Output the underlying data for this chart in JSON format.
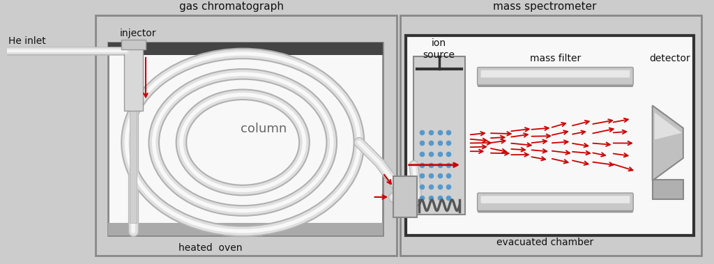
{
  "bg_color": "#cccccc",
  "title_gc": "gas chromatograph",
  "title_ms": "mass spectrometer",
  "label_oven": "heated  oven",
  "label_evacuated": "evacuated chamber",
  "label_column": "column",
  "label_injector": "injector",
  "label_he": "He inlet",
  "label_ion": "ion\nsource",
  "label_mass_filter": "mass filter",
  "label_detector": "detector",
  "arrow_color": "#cc0000",
  "tube_color": "#e8e8e8",
  "tube_shadow": "#b0b0b0",
  "box_fill": "#c8c8c8",
  "white_fill": "#ffffff",
  "rod_fill": "#c0c0c0",
  "ion_box_fill": "#d0d0d0"
}
